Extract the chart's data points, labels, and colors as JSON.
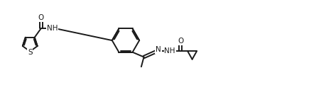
{
  "bg_color": "#ffffff",
  "line_color": "#1a1a1a",
  "line_width": 1.4,
  "font_size": 7.5,
  "fig_width": 4.59,
  "fig_height": 1.37,
  "dpi": 100,
  "xlim": [
    0,
    100
  ],
  "ylim": [
    0,
    30
  ]
}
